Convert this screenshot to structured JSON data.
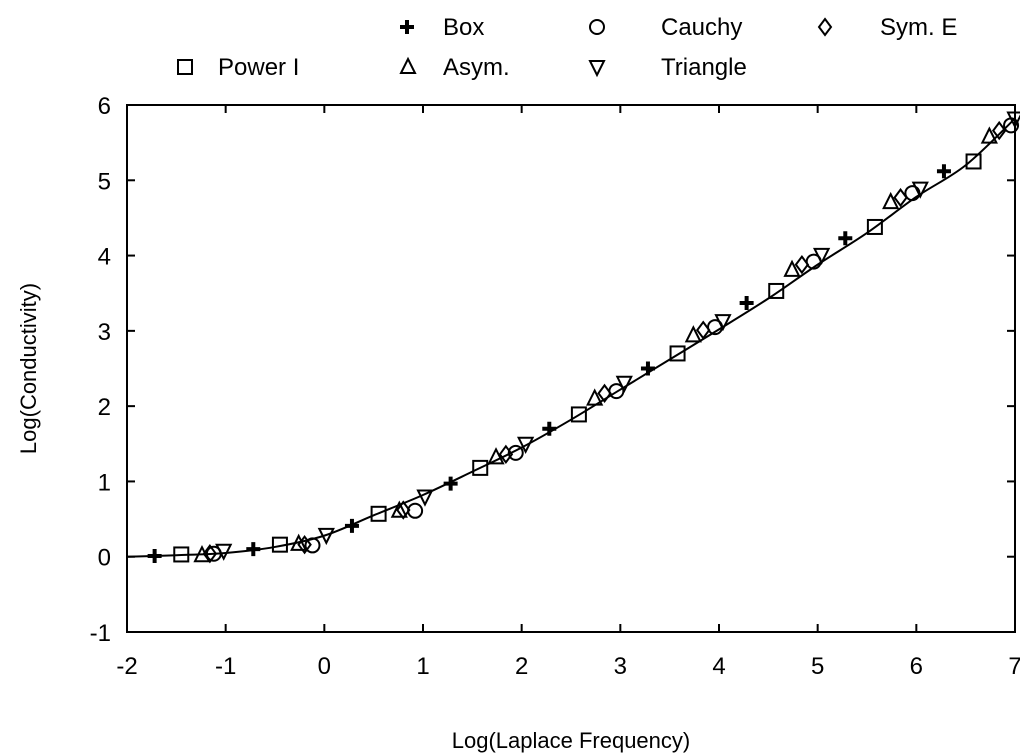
{
  "chart_data": {
    "type": "scatter",
    "title": "",
    "xlabel": "Log(Laplace Frequency)",
    "ylabel": "Log(Conductivity)",
    "xlim": [
      -2,
      7
    ],
    "ylim": [
      -1,
      6
    ],
    "xticks": [
      "-2",
      "-1",
      "0",
      "1",
      "2",
      "3",
      "4",
      "5",
      "6",
      "7"
    ],
    "yticks": [
      "-1",
      "0",
      "1",
      "2",
      "3",
      "4",
      "5",
      "6"
    ],
    "grid": false,
    "legend_position": "top",
    "legend": [
      {
        "label": "Box",
        "marker": "plus"
      },
      {
        "label": "Cauchy",
        "marker": "circle"
      },
      {
        "label": "Sym. E",
        "marker": "diamond"
      },
      {
        "label": "Power I",
        "marker": "square"
      },
      {
        "label": "Asym.",
        "marker": "triangle-up"
      },
      {
        "label": "Triangle",
        "marker": "triangle-down"
      }
    ],
    "curve": {
      "x": [
        -2,
        -1.5,
        -1,
        -0.5,
        0,
        0.5,
        1,
        1.5,
        2,
        2.5,
        3,
        3.5,
        4,
        4.5,
        5,
        5.5,
        6,
        6.5,
        7
      ],
      "y": [
        0,
        0.02,
        0.05,
        0.13,
        0.28,
        0.55,
        0.82,
        1.13,
        1.45,
        1.82,
        2.22,
        2.62,
        3.02,
        3.43,
        3.88,
        4.3,
        4.78,
        5.2,
        5.82
      ]
    },
    "series": [
      {
        "name": "Box",
        "marker": "plus",
        "x": [
          -1.72,
          -0.72,
          0.28,
          1.28,
          2.28,
          3.28,
          4.28,
          5.28,
          6.28
        ],
        "y": [
          0.01,
          0.1,
          0.41,
          0.97,
          1.7,
          2.5,
          3.37,
          4.23,
          5.12
        ]
      },
      {
        "name": "Cauchy",
        "marker": "circle",
        "x": [
          -1.12,
          -0.12,
          0.92,
          1.94,
          2.96,
          3.96,
          4.96,
          5.96,
          6.96
        ],
        "y": [
          0.04,
          0.15,
          0.61,
          1.38,
          2.2,
          3.05,
          3.92,
          4.83,
          5.73
        ]
      },
      {
        "name": "Sym. E",
        "marker": "diamond",
        "x": [
          -1.16,
          -0.2,
          0.8,
          1.84,
          2.84,
          3.84,
          4.84,
          5.84,
          6.84
        ],
        "y": [
          0.04,
          0.16,
          0.62,
          1.36,
          2.17,
          3.01,
          3.88,
          4.77,
          5.66
        ]
      },
      {
        "name": "Power I",
        "marker": "square",
        "x": [
          -1.45,
          -0.45,
          0.55,
          1.58,
          2.58,
          3.58,
          4.58,
          5.58,
          6.58
        ],
        "y": [
          0.03,
          0.16,
          0.57,
          1.18,
          1.89,
          2.7,
          3.53,
          4.38,
          5.25
        ]
      },
      {
        "name": "Asym.",
        "marker": "triangle-up",
        "x": [
          -1.24,
          -0.26,
          0.76,
          1.74,
          2.74,
          3.74,
          4.74,
          5.74,
          6.74
        ],
        "y": [
          0.02,
          0.17,
          0.61,
          1.32,
          2.1,
          2.94,
          3.81,
          4.71,
          5.58
        ]
      },
      {
        "name": "Triangle",
        "marker": "triangle-down",
        "x": [
          -1.02,
          0.02,
          1.02,
          2.04,
          3.04,
          4.04,
          5.04,
          6.04,
          7.0
        ],
        "y": [
          0.08,
          0.29,
          0.8,
          1.5,
          2.31,
          3.13,
          4.01,
          4.89,
          5.82
        ]
      }
    ]
  }
}
